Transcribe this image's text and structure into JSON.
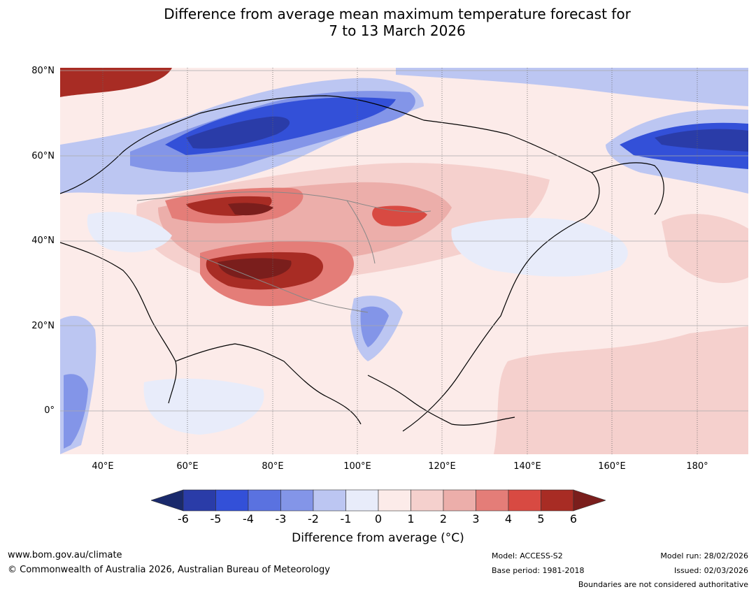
{
  "title": {
    "line1": "Difference from average mean maximum temperature forecast for",
    "line2": "7 to 13 March 2026"
  },
  "map": {
    "lat_labels": [
      "80°N",
      "60°N",
      "40°N",
      "20°N",
      "0°"
    ],
    "lon_labels": [
      "40°E",
      "60°E",
      "80°E",
      "100°E",
      "120°E",
      "140°E",
      "160°E",
      "180°"
    ]
  },
  "colorbar": {
    "ticks": [
      "-6",
      "-5",
      "-4",
      "-3",
      "-2",
      "-1",
      "0",
      "1",
      "2",
      "3",
      "4",
      "5",
      "6"
    ],
    "title": "Difference from average (°C)",
    "colors": [
      "#1a2a6c",
      "#2a3ca8",
      "#3350d8",
      "#5a72e0",
      "#8395e8",
      "#bcc6f2",
      "#e8ecfa",
      "#fcebe9",
      "#f5d0cd",
      "#ecaeaa",
      "#e47d78",
      "#d84a42",
      "#a82c24",
      "#7a1e1c"
    ]
  },
  "footer": {
    "website": "www.bom.gov.au/climate",
    "copyright": "© Commonwealth of Australia 2026, Australian Bureau of Meteorology",
    "model": "Model: ACCESS-S2",
    "base_period": "Base period: 1981-2018",
    "model_run": "Model run: 28/02/2026",
    "issued": "Issued: 02/03/2026",
    "disclaimer": "Boundaries are not considered authoritative"
  }
}
